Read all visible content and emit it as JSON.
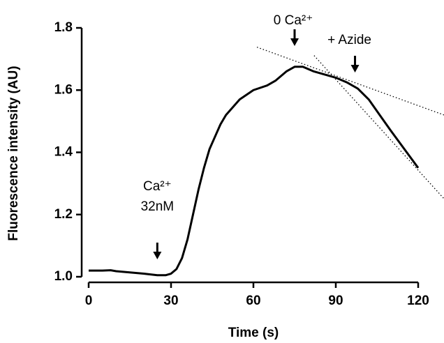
{
  "chart_data": {
    "type": "line",
    "xlabel": "Time (s)",
    "ylabel": "Fluorescence intensity (AU)",
    "x": [
      0,
      5,
      8,
      10,
      15,
      20,
      25,
      28,
      30,
      32,
      34,
      36,
      38,
      40,
      42,
      44,
      46,
      48,
      50,
      55,
      60,
      65,
      68,
      72,
      75,
      78,
      82,
      86,
      90,
      94,
      98,
      102,
      106,
      110,
      115,
      120
    ],
    "values": [
      1.02,
      1.02,
      1.021,
      1.018,
      1.014,
      1.01,
      1.005,
      1.005,
      1.01,
      1.025,
      1.06,
      1.12,
      1.2,
      1.28,
      1.35,
      1.41,
      1.45,
      1.49,
      1.52,
      1.57,
      1.6,
      1.615,
      1.63,
      1.66,
      1.675,
      1.675,
      1.66,
      1.65,
      1.64,
      1.625,
      1.605,
      1.57,
      1.52,
      1.47,
      1.41,
      1.35
    ],
    "color": "#000000",
    "xlim": [
      0,
      120
    ],
    "xticks": [
      0,
      30,
      60,
      90,
      120
    ],
    "ylim": [
      1.0,
      1.8
    ],
    "yticks": [
      {
        "value": 1.0,
        "label": "1.0"
      },
      {
        "value": 1.2,
        "label": "1.2"
      },
      {
        "value": 1.4,
        "label": "1.4"
      },
      {
        "value": 1.6,
        "label": "1.6"
      },
      {
        "value": 1.8,
        "label": "1.8"
      }
    ],
    "tangent_lines": [
      {
        "x": [
          61.3,
          129.4
        ],
        "values": [
          1.738,
          1.52
        ]
      },
      {
        "x": [
          82.1,
          129.4
        ],
        "values": [
          1.711,
          1.251
        ]
      }
    ],
    "annotations": [
      {
        "x": 25,
        "text": [
          "Ca²⁺",
          "32nM"
        ]
      },
      {
        "x": 75,
        "text": [
          "0 Ca²⁺"
        ]
      },
      {
        "x": 97,
        "text": [
          "+ Azide"
        ]
      }
    ]
  }
}
